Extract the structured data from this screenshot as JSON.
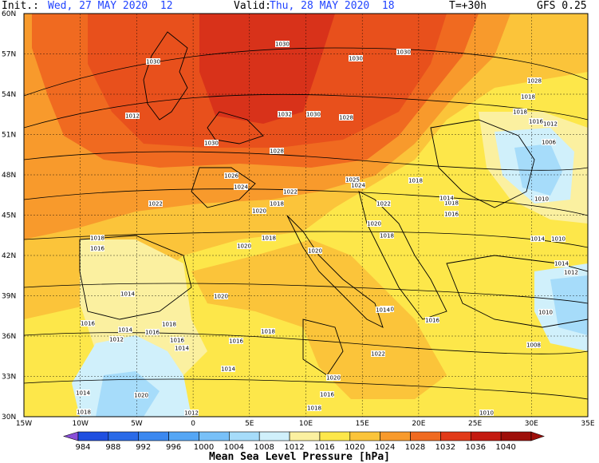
{
  "header": {
    "init_label": "Init.:",
    "init_value": "Wed, 27 MAY 2020  12",
    "valid_label": "Valid:",
    "valid_value": "Thu, 28 MAY 2020  18",
    "lead": "T=+30h",
    "model": "GFS 0.25"
  },
  "map": {
    "lat_ticks": [
      "60N",
      "57N",
      "54N",
      "51N",
      "48N",
      "45N",
      "42N",
      "39N",
      "36N",
      "33N",
      "30N"
    ],
    "lon_ticks": [
      "15W",
      "10W",
      "5W",
      "0",
      "5E",
      "10E",
      "15E",
      "20E",
      "25E",
      "30E",
      "35E"
    ],
    "isobar_labels": [
      "1030",
      "1030",
      "1030",
      "1030",
      "1032",
      "1030",
      "1028",
      "1030",
      "1028",
      "1026",
      "1024",
      "1025",
      "1024",
      "1022",
      "1022",
      "1020",
      "1018",
      "1022",
      "1020",
      "1018",
      "1018",
      "1018",
      "1016",
      "1020",
      "1020",
      "1018",
      "1016",
      "1020",
      "1014",
      "1020",
      "1016",
      "1016",
      "1018",
      "1016",
      "1014",
      "1014",
      "1012",
      "1016",
      "1016",
      "1014",
      "1012",
      "1018",
      "1022",
      "1020",
      "1016",
      "1018",
      "1014",
      "1010",
      "1006",
      "1012",
      "1016",
      "1018",
      "1018",
      "1028",
      "1018",
      "1014",
      "1012",
      "1010",
      "1008",
      "1010",
      "1014",
      "1014",
      "1010",
      "1012",
      "1014",
      "1020",
      "1018"
    ],
    "highs": [
      "1030 anticyclone over North Sea"
    ],
    "lows": [
      "1006 low over Ukraine/Black Sea north",
      "1010 low over eastern Turkey"
    ]
  },
  "colorbar": {
    "levels": [
      "984",
      "988",
      "992",
      "996",
      "1000",
      "1004",
      "1008",
      "1012",
      "1016",
      "1020",
      "1024",
      "1028",
      "1032",
      "1036",
      "1040"
    ],
    "colors": [
      "#8a4fd8",
      "#1f4fe0",
      "#2a6ae8",
      "#3b88f0",
      "#55a6f5",
      "#78c0f8",
      "#a6dcfa",
      "#d0f0fb",
      "#fbf0a0",
      "#fde74a",
      "#fbc43a",
      "#f89a2c",
      "#f06a20",
      "#e23a18",
      "#c41a10",
      "#9e0f0a"
    ],
    "title": "Mean Sea Level Pressure [hPa]"
  }
}
